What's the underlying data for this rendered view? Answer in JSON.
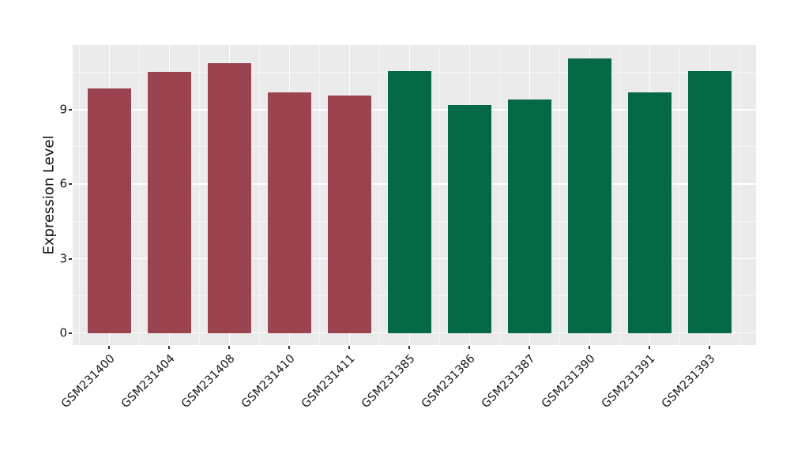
{
  "chart_data": {
    "type": "bar",
    "title": "",
    "xlabel": "",
    "ylabel": "Expression Level",
    "categories": [
      "GSM231400",
      "GSM231404",
      "GSM231408",
      "GSM231410",
      "GSM231411",
      "GSM231385",
      "GSM231386",
      "GSM231387",
      "GSM231390",
      "GSM231391",
      "GSM231393"
    ],
    "values": [
      9.88,
      10.55,
      10.9,
      9.71,
      9.59,
      10.57,
      9.2,
      9.42,
      11.08,
      9.71,
      10.56
    ],
    "bar_colors": [
      "#9B4450",
      "#9B4450",
      "#9B4450",
      "#9B4450",
      "#9B4450",
      "#056946",
      "#056946",
      "#056946",
      "#056946",
      "#056946",
      "#056946"
    ],
    "yticks": [
      0,
      3,
      6,
      9
    ],
    "yticks_minor": [
      1.5,
      4.5,
      7.5,
      10.5
    ],
    "ylim": [
      -0.48,
      11.62
    ],
    "grid": "on",
    "legend": "none",
    "colors": {
      "panel_background": "#EBEBEB",
      "grid_major": "#FFFFFF",
      "grid_minor": "rgba(255,255,255,0.55)",
      "group1_red": "#9B4450",
      "group2_green": "#056946",
      "tick_text": "#1a1a1a"
    }
  }
}
